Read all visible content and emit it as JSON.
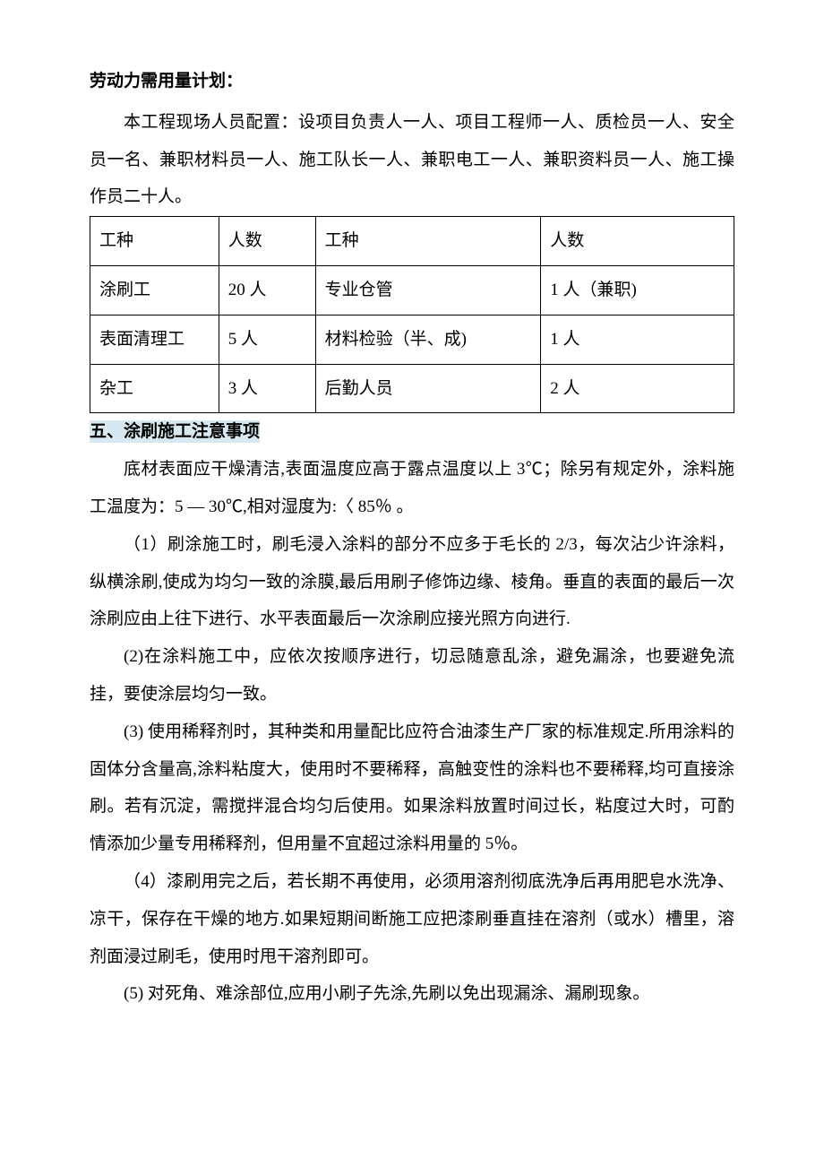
{
  "section1": {
    "heading": "劳动力需用量计划：",
    "intro": "本工程现场人员配置：设项目负责人一人、项目工程师一人、质检员一人、安全员一名、兼职材料员一人、施工队长一人、兼职电工一人、兼职资料员一人、施工操作员二十人。"
  },
  "table": {
    "headers": {
      "col1": "工种",
      "col2": "人数",
      "col3": "工种",
      "col4": "人数"
    },
    "rows": [
      {
        "c1": "涂刷工",
        "c2": "20 人",
        "c3": "专业仓管",
        "c4": "1 人（兼职)"
      },
      {
        "c1": "表面清理工",
        "c2": "5 人",
        "c3": "材料检验（半、成)",
        "c4": "1 人"
      },
      {
        "c1": "杂工",
        "c2": "3 人",
        "c3": "后勤人员",
        "c4": "2 人"
      }
    ]
  },
  "section2": {
    "heading": "五、涂刷施工注意事项",
    "intro": "底材表面应干燥清洁,表面温度应高于露点温度以上 3℃；除另有规定外，涂料施工温度为：5 — 30℃,相对湿度为:〈 85％ 。",
    "items": [
      "（1）刷涂施工时，刷毛浸入涂料的部分不应多于毛长的 2/3，每次沾少许涂料，纵横涂刷,使成为均匀一致的涂膜,最后用刷子修饰边缘、棱角。垂直的表面的最后一次涂刷应由上往下进行、水平表面最后一次涂刷应接光照方向进行.",
      "(2)在涂料施工中，应依次按顺序进行，切忌随意乱涂，避免漏涂，也要避免流挂，要使涂层均匀一致。",
      "(3) 使用稀释剂时，其种类和用量配比应符合油漆生产厂家的标准规定.所用涂料的固体分含量高,涂料粘度大，使用时不要稀释，高触变性的涂料也不要稀释,均可直接涂刷。若有沉淀，需搅拌混合均匀后使用。如果涂料放置时间过长，粘度过大时，可酌情添加少量专用稀释剂，但用量不宜超过涂料用量的 5％。",
      "（4）漆刷用完之后，若长期不再使用，必须用溶剂彻底洗净后再用肥皂水洗净、凉干，保存在干燥的地方.如果短期间断施工应把漆刷垂直挂在溶剂（或水）槽里，溶剂面浸过刷毛，使用时甩干溶剂即可。",
      "(5) 对死角、难涂部位,应用小刷子先涂,先刷以免出现漏涂、漏刷现象。"
    ]
  },
  "styles": {
    "background_color": "#ffffff",
    "text_color": "#000000",
    "highlight_color": "#d8e8f0",
    "border_color": "#000000",
    "font_size": 19,
    "line_height": 2.2
  }
}
